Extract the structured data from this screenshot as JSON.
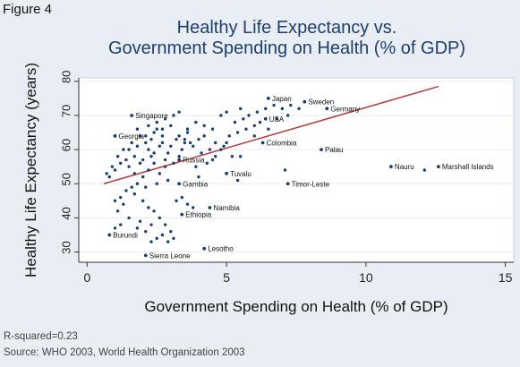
{
  "figure_label": "Figure 4",
  "chart_data": {
    "type": "scatter",
    "title_line1": "Healthy Life Expectancy vs.",
    "title_line2": "Government Spending on Health (% of GDP)",
    "xlabel": "Government Spending on Health (% of GDP)",
    "ylabel": "Healthy Life Expectancy (years)",
    "xlim": [
      -0.3,
      15.3
    ],
    "ylim": [
      27,
      81
    ],
    "xticks": [
      0,
      5,
      10,
      15
    ],
    "yticks": [
      30,
      40,
      50,
      60,
      70,
      80
    ],
    "fit_line": {
      "x": [
        0.6,
        12.6
      ],
      "y": [
        50,
        78.5
      ]
    },
    "labeled_points": [
      {
        "x": 6.5,
        "y": 75,
        "label": "Japan"
      },
      {
        "x": 7.8,
        "y": 74,
        "label": "Sweden"
      },
      {
        "x": 8.6,
        "y": 72,
        "label": "Germany"
      },
      {
        "x": 6.4,
        "y": 69,
        "label": "USA"
      },
      {
        "x": 1.6,
        "y": 70,
        "label": "Singapore"
      },
      {
        "x": 1.0,
        "y": 64,
        "label": "Georgia"
      },
      {
        "x": 6.3,
        "y": 62,
        "label": "Colombia"
      },
      {
        "x": 8.4,
        "y": 60,
        "label": "Palau"
      },
      {
        "x": 3.3,
        "y": 57,
        "label": "Russia"
      },
      {
        "x": 10.9,
        "y": 55,
        "label": "Nauru"
      },
      {
        "x": 12.6,
        "y": 55,
        "label": "Marshall Islands"
      },
      {
        "x": 5.0,
        "y": 53,
        "label": "Tuvalu"
      },
      {
        "x": 7.2,
        "y": 50,
        "label": "Timor-Leste"
      },
      {
        "x": 3.3,
        "y": 50,
        "label": "Gambia"
      },
      {
        "x": 4.4,
        "y": 43,
        "label": "Namibia"
      },
      {
        "x": 3.4,
        "y": 41,
        "label": "Ethiopia"
      },
      {
        "x": 0.8,
        "y": 35,
        "label": "Burundi"
      },
      {
        "x": 4.2,
        "y": 31,
        "label": "Lesotho"
      },
      {
        "x": 2.1,
        "y": 29,
        "label": "Sierra Leone"
      }
    ],
    "points": [
      [
        12.1,
        54
      ],
      [
        7.1,
        54
      ],
      [
        5.4,
        51
      ],
      [
        5.2,
        58
      ],
      [
        5.5,
        58
      ],
      [
        5.0,
        62
      ],
      [
        4.8,
        60
      ],
      [
        4.6,
        62
      ],
      [
        4.4,
        60
      ],
      [
        4.2,
        64
      ],
      [
        4.0,
        63
      ],
      [
        3.8,
        61
      ],
      [
        3.6,
        65
      ],
      [
        3.5,
        62
      ],
      [
        3.4,
        60
      ],
      [
        3.3,
        58
      ],
      [
        3.2,
        63
      ],
      [
        3.1,
        56
      ],
      [
        3.0,
        61
      ],
      [
        2.9,
        59
      ],
      [
        2.8,
        57
      ],
      [
        2.7,
        64
      ],
      [
        2.6,
        61
      ],
      [
        2.5,
        66
      ],
      [
        2.4,
        59
      ],
      [
        2.3,
        63
      ],
      [
        2.2,
        60
      ],
      [
        2.1,
        62
      ],
      [
        2.0,
        57
      ],
      [
        1.9,
        64
      ],
      [
        1.8,
        61
      ],
      [
        1.7,
        58
      ],
      [
        1.6,
        62
      ],
      [
        1.5,
        60
      ],
      [
        1.4,
        57
      ],
      [
        1.3,
        60
      ],
      [
        1.2,
        56
      ],
      [
        1.1,
        58
      ],
      [
        1.0,
        54
      ],
      [
        0.9,
        55
      ],
      [
        0.8,
        52
      ],
      [
        0.7,
        53
      ],
      [
        2.8,
        55
      ],
      [
        2.6,
        53
      ],
      [
        2.4,
        56
      ],
      [
        2.2,
        54
      ],
      [
        2.0,
        52
      ],
      [
        1.8,
        50
      ],
      [
        1.6,
        49
      ],
      [
        1.4,
        48
      ],
      [
        1.2,
        46
      ],
      [
        1.0,
        45
      ],
      [
        2.9,
        51
      ],
      [
        2.5,
        50
      ],
      [
        2.1,
        49
      ],
      [
        1.7,
        47
      ],
      [
        1.3,
        44
      ],
      [
        1.1,
        42
      ],
      [
        2.0,
        45
      ],
      [
        2.2,
        43
      ],
      [
        2.4,
        42
      ],
      [
        2.6,
        40
      ],
      [
        2.8,
        38
      ],
      [
        3.0,
        36
      ],
      [
        2.7,
        35
      ],
      [
        2.5,
        34
      ],
      [
        2.3,
        33
      ],
      [
        2.9,
        33
      ],
      [
        3.1,
        34
      ],
      [
        1.8,
        37
      ],
      [
        1.5,
        40
      ],
      [
        1.2,
        38
      ],
      [
        1.0,
        37
      ],
      [
        3.2,
        45
      ],
      [
        3.4,
        46
      ],
      [
        3.6,
        44
      ],
      [
        3.8,
        43
      ],
      [
        2.3,
        38
      ],
      [
        2.1,
        36
      ],
      [
        1.9,
        39
      ],
      [
        4.0,
        52
      ],
      [
        4.3,
        56
      ],
      [
        4.6,
        58
      ],
      [
        4.9,
        61
      ],
      [
        5.1,
        64
      ],
      [
        5.4,
        65
      ],
      [
        5.7,
        66
      ],
      [
        6.0,
        67
      ],
      [
        6.2,
        68
      ],
      [
        5.8,
        70
      ],
      [
        6.1,
        71
      ],
      [
        6.4,
        72
      ],
      [
        6.7,
        73
      ],
      [
        7.0,
        72
      ],
      [
        7.3,
        73
      ],
      [
        7.6,
        72
      ],
      [
        5.5,
        72
      ],
      [
        5.0,
        71
      ],
      [
        4.8,
        70
      ],
      [
        5.3,
        68
      ],
      [
        5.6,
        69
      ],
      [
        6.0,
        64
      ],
      [
        6.5,
        66
      ],
      [
        6.8,
        69
      ],
      [
        7.2,
        70
      ],
      [
        4.5,
        66
      ],
      [
        4.2,
        67
      ],
      [
        3.9,
        68
      ],
      [
        3.6,
        66
      ],
      [
        3.3,
        64
      ],
      [
        3.0,
        67
      ],
      [
        2.7,
        66
      ],
      [
        2.4,
        65
      ],
      [
        2.1,
        64
      ],
      [
        1.8,
        66
      ],
      [
        2.2,
        67
      ],
      [
        2.5,
        68
      ],
      [
        2.8,
        69
      ],
      [
        3.1,
        70
      ],
      [
        3.3,
        71
      ],
      [
        3.5,
        63
      ],
      [
        3.7,
        62
      ],
      [
        4.1,
        59
      ],
      [
        4.5,
        57
      ],
      [
        3.9,
        55
      ],
      [
        2.7,
        62
      ],
      [
        2.3,
        58
      ],
      [
        1.9,
        56
      ],
      [
        1.5,
        55
      ],
      [
        1.7,
        53
      ]
    ]
  },
  "r_squared": "R-squared=0.23",
  "source": "Source: WHO 2003, World Health Organization 2003",
  "colors": {
    "background": "#e8eef3",
    "plot_area": "#ffffff",
    "point": "#1a3f6f",
    "fit_line": "#b03a3a",
    "title": "#1e3e6e"
  }
}
